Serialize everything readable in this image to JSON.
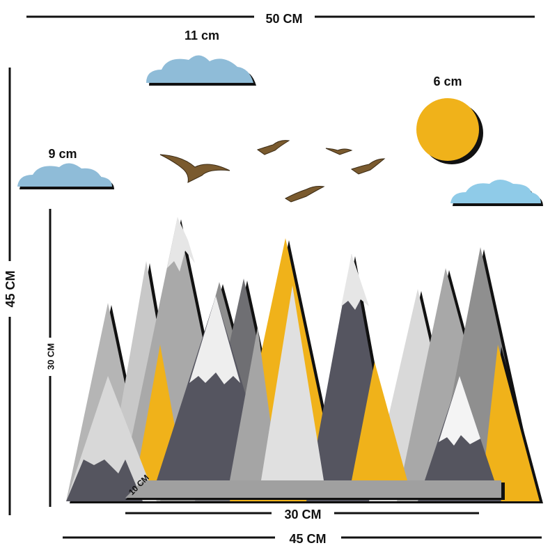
{
  "labels": {
    "top_width": "50 CM",
    "cloud_large": "11 cm",
    "sun": "6 cm",
    "cloud_small": "9 cm",
    "total_height": "45 CM",
    "mountain_height": "30 CM",
    "shelf_depth": "10 CM",
    "shelf_width": "30 CM",
    "mountain_width": "45 CM"
  }
}
